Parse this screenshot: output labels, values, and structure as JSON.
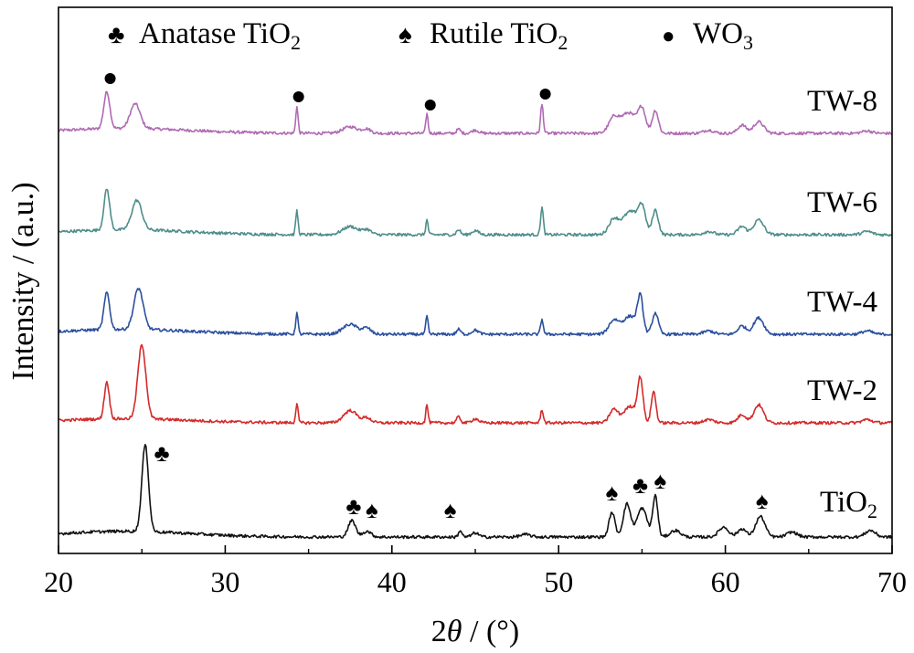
{
  "chart_data": {
    "type": "line",
    "xlabel_prefix": "2",
    "xlabel_var": "θ",
    "xlabel_suffix": " / (°)",
    "ylabel": "Intensity / (a.u.)",
    "xlim": [
      20,
      70
    ],
    "xticks": [
      20,
      30,
      40,
      50,
      60,
      70
    ],
    "grid": false,
    "legend": {
      "placement": "top",
      "items": [
        {
          "symbol": "♣",
          "base": "Anatase TiO",
          "sub": "2"
        },
        {
          "symbol": "♠",
          "base": "Rutile TiO",
          "sub": "2"
        },
        {
          "symbol": "●",
          "base": "WO",
          "sub": "3"
        }
      ]
    },
    "series": [
      {
        "label_base": "TW-8",
        "label_sub": "",
        "color": "#B06AB3",
        "offset": 4,
        "background": 0.06,
        "peaks": [
          [
            22.9,
            0.45,
            0.18
          ],
          [
            24.6,
            0.3,
            0.3
          ],
          [
            34.3,
            0.32,
            0.07
          ],
          [
            37.5,
            0.08,
            0.45
          ],
          [
            38.5,
            0.05,
            0.25
          ],
          [
            42.1,
            0.24,
            0.07
          ],
          [
            44.0,
            0.05,
            0.12
          ],
          [
            45.0,
            0.04,
            0.2
          ],
          [
            49.0,
            0.35,
            0.08
          ],
          [
            53.3,
            0.18,
            0.3
          ],
          [
            54.2,
            0.25,
            0.45
          ],
          [
            55.0,
            0.28,
            0.22
          ],
          [
            55.8,
            0.28,
            0.18
          ],
          [
            59.0,
            0.04,
            0.3
          ],
          [
            61.0,
            0.1,
            0.25
          ],
          [
            62.0,
            0.14,
            0.3
          ],
          [
            68.5,
            0.03,
            0.3
          ]
        ]
      },
      {
        "label_base": "TW-6",
        "label_sub": "",
        "color": "#4E8E8A",
        "offset": 3,
        "background": 0.06,
        "peaks": [
          [
            22.9,
            0.5,
            0.17
          ],
          [
            24.7,
            0.36,
            0.3
          ],
          [
            34.3,
            0.29,
            0.07
          ],
          [
            37.5,
            0.1,
            0.45
          ],
          [
            38.5,
            0.06,
            0.25
          ],
          [
            42.1,
            0.18,
            0.07
          ],
          [
            44.0,
            0.06,
            0.12
          ],
          [
            45.0,
            0.05,
            0.2
          ],
          [
            49.0,
            0.33,
            0.08
          ],
          [
            53.3,
            0.18,
            0.3
          ],
          [
            54.3,
            0.28,
            0.45
          ],
          [
            55.0,
            0.3,
            0.22
          ],
          [
            55.8,
            0.3,
            0.18
          ],
          [
            59.0,
            0.04,
            0.3
          ],
          [
            61.0,
            0.1,
            0.25
          ],
          [
            62.0,
            0.18,
            0.3
          ],
          [
            68.5,
            0.04,
            0.3
          ]
        ]
      },
      {
        "label_base": "TW-4",
        "label_sub": "",
        "color": "#2A4F9E",
        "offset": 2,
        "background": 0.06,
        "peaks": [
          [
            22.9,
            0.45,
            0.17
          ],
          [
            24.8,
            0.5,
            0.28
          ],
          [
            34.3,
            0.26,
            0.07
          ],
          [
            37.5,
            0.12,
            0.45
          ],
          [
            38.5,
            0.07,
            0.25
          ],
          [
            42.1,
            0.22,
            0.07
          ],
          [
            44.0,
            0.06,
            0.12
          ],
          [
            45.0,
            0.05,
            0.2
          ],
          [
            49.0,
            0.18,
            0.08
          ],
          [
            53.3,
            0.16,
            0.3
          ],
          [
            54.3,
            0.22,
            0.45
          ],
          [
            54.9,
            0.4,
            0.16
          ],
          [
            55.8,
            0.26,
            0.18
          ],
          [
            59.0,
            0.04,
            0.3
          ],
          [
            61.0,
            0.1,
            0.25
          ],
          [
            62.0,
            0.2,
            0.3
          ],
          [
            68.5,
            0.04,
            0.3
          ]
        ]
      },
      {
        "label_base": "TW-2",
        "label_sub": "",
        "color": "#D42A2A",
        "offset": 1,
        "background": 0.05,
        "peaks": [
          [
            22.9,
            0.45,
            0.15
          ],
          [
            25.0,
            0.9,
            0.24
          ],
          [
            34.3,
            0.23,
            0.07
          ],
          [
            37.5,
            0.15,
            0.4
          ],
          [
            38.5,
            0.06,
            0.25
          ],
          [
            42.1,
            0.22,
            0.07
          ],
          [
            44.0,
            0.07,
            0.12
          ],
          [
            45.0,
            0.05,
            0.2
          ],
          [
            49.0,
            0.16,
            0.08
          ],
          [
            53.3,
            0.16,
            0.25
          ],
          [
            54.3,
            0.2,
            0.4
          ],
          [
            54.9,
            0.5,
            0.16
          ],
          [
            55.7,
            0.38,
            0.14
          ],
          [
            59.0,
            0.04,
            0.3
          ],
          [
            61.0,
            0.1,
            0.25
          ],
          [
            62.0,
            0.22,
            0.28
          ],
          [
            68.5,
            0.04,
            0.3
          ]
        ]
      },
      {
        "label_base": "TiO",
        "label_sub": "2",
        "color": "#111111",
        "offset": 0,
        "background": 0.07,
        "peaks": [
          [
            25.2,
            1.05,
            0.2
          ],
          [
            37.6,
            0.2,
            0.22
          ],
          [
            38.5,
            0.07,
            0.25
          ],
          [
            44.1,
            0.08,
            0.1
          ],
          [
            45.0,
            0.05,
            0.2
          ],
          [
            48.0,
            0.03,
            0.3
          ],
          [
            53.2,
            0.3,
            0.18
          ],
          [
            54.1,
            0.4,
            0.22
          ],
          [
            55.0,
            0.35,
            0.3
          ],
          [
            55.8,
            0.5,
            0.15
          ],
          [
            57.0,
            0.08,
            0.3
          ],
          [
            59.9,
            0.12,
            0.3
          ],
          [
            61.0,
            0.1,
            0.25
          ],
          [
            62.1,
            0.25,
            0.28
          ],
          [
            64.0,
            0.06,
            0.3
          ],
          [
            68.7,
            0.08,
            0.3
          ]
        ]
      }
    ],
    "wo3_markers": [
      23.1,
      34.4,
      42.3,
      49.2
    ],
    "tio2_markers": [
      {
        "symbol": "♣",
        "x": 26.2
      },
      {
        "symbol": "♣",
        "x": 37.7
      },
      {
        "symbol": "♠",
        "x": 38.8
      },
      {
        "symbol": "♠",
        "x": 43.5
      },
      {
        "symbol": "♠",
        "x": 53.2
      },
      {
        "symbol": "♣",
        "x": 54.9
      },
      {
        "symbol": "♠",
        "x": 56.1
      },
      {
        "symbol": "♠",
        "x": 62.2
      }
    ]
  }
}
